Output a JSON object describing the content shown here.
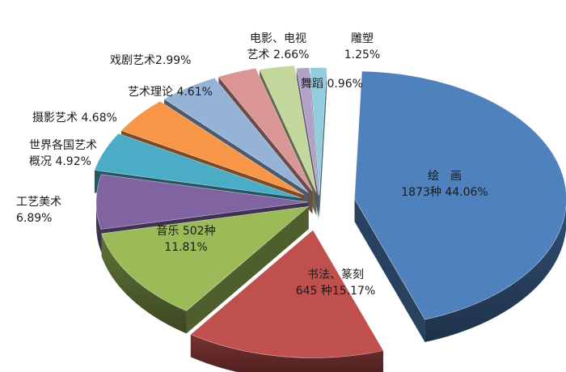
{
  "chart_data": {
    "type": "pie",
    "style": "3d-exploded",
    "slices": [
      {
        "name": "绘　画",
        "percent": 44.06,
        "count": 1873,
        "label": "1873种 44.06%",
        "color": "#4f81bd"
      },
      {
        "name": "书法、篆刻",
        "percent": 15.17,
        "count": 645,
        "label": "645 种15.17%",
        "color": "#c0504d"
      },
      {
        "name": "音乐",
        "percent": 11.81,
        "count": 502,
        "label": "11.81%",
        "color": "#9bbb59"
      },
      {
        "name": "工艺美术",
        "percent": 6.89,
        "label": "6.89%",
        "color": "#8064a2"
      },
      {
        "name": "世界各国艺术概况",
        "percent": 4.92,
        "label": "概况 4.92%",
        "color": "#4bacc6"
      },
      {
        "name": "摄影艺术",
        "percent": 4.68,
        "label": "摄影艺术 4.68%",
        "color": "#f79646"
      },
      {
        "name": "艺术理论",
        "percent": 4.61,
        "label": "艺术理论 4.61%",
        "color": "#95b3d7"
      },
      {
        "name": "戏剧艺术",
        "percent": 2.99,
        "label": "戏剧艺术2.99%",
        "color": "#d99694"
      },
      {
        "name": "电影、电视艺术",
        "percent": 2.66,
        "label": "艺术 2.66%",
        "color": "#c3d69b"
      },
      {
        "name": "舞蹈",
        "percent": 0.96,
        "label": "舞蹈 0.96%",
        "color": "#b2a1c7"
      },
      {
        "name": "雕塑",
        "percent": 1.25,
        "label": "1.25%",
        "color": "#93cddd"
      }
    ],
    "labels": {
      "huihua_name": "绘　画",
      "huihua_value": "1873种 44.06%",
      "shufa_name": "书法、篆刻",
      "shufa_value": "645 种15.17%",
      "yinyue_name": "音乐 502种",
      "yinyue_value": "11.81%",
      "gongyi_name": "工艺美术",
      "gongyi_value": "6.89%",
      "shijie_line1": "世界各国艺术",
      "shijie_line2": "概况 4.92%",
      "sheying": "摄影艺术 4.68%",
      "lilun": "艺术理论 4.61%",
      "xiju": "戏剧艺术2.99%",
      "dianying_line1": "电影、电视",
      "dianying_line2": "艺术 2.66%",
      "diaosu_line1": "雕塑",
      "diaosu_line2": "1.25%",
      "wudao": "舞蹈 0.96%"
    }
  }
}
